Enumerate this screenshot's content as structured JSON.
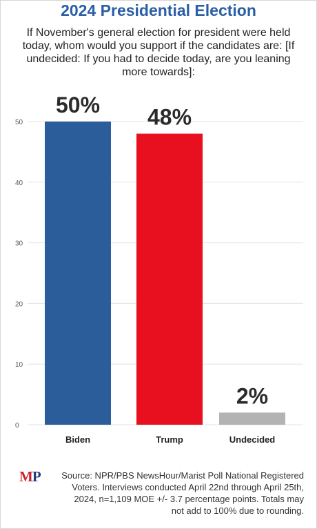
{
  "header": {
    "title": "2024 Presidential Election",
    "question": "If November's general election for president were held today, whom would you support if the candidates are: [If undecided: If you had to decide today, are you leaning more towards]:"
  },
  "chart_data": {
    "type": "bar",
    "categories": [
      "Biden",
      "Trump",
      "Undecided"
    ],
    "values": [
      50,
      48,
      2
    ],
    "data_labels": [
      "50%",
      "48%",
      "2%"
    ],
    "ylim": [
      0,
      50
    ],
    "yticks": [
      "0",
      "10",
      "20",
      "30",
      "40",
      "50"
    ],
    "ytick_values": [
      0,
      10,
      20,
      30,
      40,
      50
    ],
    "grid": true,
    "legend": "none",
    "colors": [
      "#2a5d9a",
      "#e8101f",
      "#b3b3b3"
    ],
    "xlabel": "",
    "ylabel": ""
  },
  "footer": {
    "logo_m": "M",
    "logo_p": "P",
    "source": "Source: NPR/PBS NewsHour/Marist Poll National Registered Voters. Interviews conducted April 22nd through April 25th, 2024, n=1,109 MOE +/- 3.7 percentage points. Totals may not add to 100% due to rounding."
  }
}
